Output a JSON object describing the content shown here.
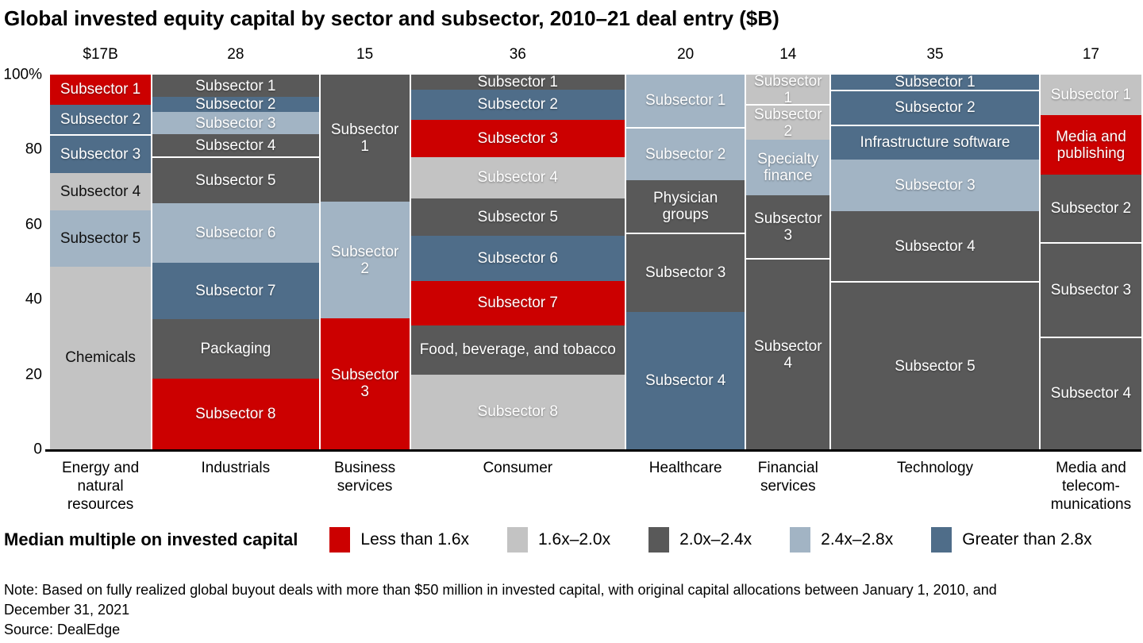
{
  "title": "Global invested equity capital by sector and subsector, 2010–21 deal entry ($B)",
  "colors": {
    "red": "#cc0000",
    "lightgray": "#c3c3c3",
    "darkgray": "#595959",
    "lightblue": "#a2b4c4",
    "darkblue": "#4f6d89"
  },
  "legend": {
    "title": "Median multiple on invested capital",
    "items": [
      {
        "label": "Less than 1.6x",
        "color": "red"
      },
      {
        "label": "1.6x–2.0x",
        "color": "lightgray"
      },
      {
        "label": "2.0x–2.4x",
        "color": "darkgray"
      },
      {
        "label": "2.4x–2.8x",
        "color": "lightblue"
      },
      {
        "label": "Greater than 2.8x",
        "color": "darkblue"
      }
    ]
  },
  "note_line1": "Note: Based on fully realized global buyout deals with more than $50 million in invested capital, with original capital allocations between January 1, 2010, and",
  "note_line2": "December 31, 2021",
  "source": "Source: DealEdge",
  "chart_data": {
    "type": "marimekko-100pct-stacked-bar",
    "title": "Global invested equity capital by sector and subsector, 2010–21 deal entry ($B)",
    "unit": "$B",
    "y_axis": {
      "ticks": [
        "100%",
        "80",
        "60",
        "40",
        "20",
        "0"
      ],
      "tick_pcts": [
        100,
        80,
        60,
        40,
        20,
        0
      ]
    },
    "color_key_meaning": {
      "red": "Less than 1.6x",
      "lightgray": "1.6x–2.0x",
      "darkgray": "2.0x–2.4x",
      "lightblue": "2.4x–2.8x",
      "darkblue": "Greater than 2.8x"
    },
    "columns": [
      {
        "sector": "Energy and natural resources",
        "total_label": "$17B",
        "value": 17,
        "segments": [
          {
            "label": "Subsector 1",
            "pct": 8,
            "color": "red"
          },
          {
            "label": "Subsector 2",
            "pct": 8,
            "color": "darkblue"
          },
          {
            "label": "Subsector 3",
            "pct": 10,
            "color": "darkblue"
          },
          {
            "label": "Subsector 4",
            "pct": 10,
            "color": "lightgray",
            "text": "dark"
          },
          {
            "label": "Subsector 5",
            "pct": 15,
            "color": "lightblue",
            "text": "dark"
          },
          {
            "label": "Chemicals",
            "pct": 49,
            "color": "lightgray",
            "text": "dark"
          }
        ]
      },
      {
        "sector": "Industrials",
        "total_label": "28",
        "value": 28,
        "segments": [
          {
            "label": "Subsector 1",
            "pct": 6,
            "color": "darkgray"
          },
          {
            "label": "Subsector 2",
            "pct": 4,
            "color": "darkblue"
          },
          {
            "label": "Subsector 3",
            "pct": 6,
            "color": "lightblue"
          },
          {
            "label": "Subsector 4",
            "pct": 6,
            "color": "darkgray"
          },
          {
            "label": "Subsector 5",
            "pct": 12,
            "color": "darkgray"
          },
          {
            "label": "Subsector 6",
            "pct": 16,
            "color": "lightblue"
          },
          {
            "label": "Subsector 7",
            "pct": 15,
            "color": "darkblue"
          },
          {
            "label": "Packaging",
            "pct": 16,
            "color": "darkgray"
          },
          {
            "label": "Subsector 8",
            "pct": 19,
            "color": "red"
          }
        ]
      },
      {
        "sector": "Business services",
        "total_label": "15",
        "value": 15,
        "segments": [
          {
            "label": "Subsector 1",
            "pct": 34,
            "color": "darkgray"
          },
          {
            "label": "Subsector 2",
            "pct": 31,
            "color": "lightblue"
          },
          {
            "label": "Subsector 3",
            "pct": 35,
            "color": "red"
          }
        ]
      },
      {
        "sector": "Consumer",
        "total_label": "36",
        "value": 36,
        "segments": [
          {
            "label": "Subsector 1",
            "pct": 4,
            "color": "darkgray"
          },
          {
            "label": "Subsector 2",
            "pct": 8,
            "color": "darkblue"
          },
          {
            "label": "Subsector 3",
            "pct": 10,
            "color": "red"
          },
          {
            "label": "Subsector 4",
            "pct": 11,
            "color": "lightgray"
          },
          {
            "label": "Subsector 5",
            "pct": 10,
            "color": "darkgray"
          },
          {
            "label": "Subsector 6",
            "pct": 12,
            "color": "darkblue"
          },
          {
            "label": "Subsector 7",
            "pct": 12,
            "color": "red"
          },
          {
            "label": "Food, beverage, and tobacco",
            "pct": 13,
            "color": "darkgray"
          },
          {
            "label": "Subsector 8",
            "pct": 20,
            "color": "lightgray"
          }
        ]
      },
      {
        "sector": "Healthcare",
        "total_label": "20",
        "value": 20,
        "segments": [
          {
            "label": "Subsector 1",
            "pct": 14,
            "color": "lightblue"
          },
          {
            "label": "Subsector 2",
            "pct": 14,
            "color": "lightblue"
          },
          {
            "label": "Physician groups",
            "pct": 14,
            "color": "darkgray"
          },
          {
            "label": "Subsector 3",
            "pct": 21,
            "color": "darkgray"
          },
          {
            "label": "Subsector 4",
            "pct": 37,
            "color": "darkblue"
          }
        ]
      },
      {
        "sector": "Financial services",
        "total_label": "14",
        "value": 14,
        "segments": [
          {
            "label": "Subsector 1",
            "pct": 8,
            "color": "lightgray"
          },
          {
            "label": "Subsector 2",
            "pct": 9,
            "color": "lightgray"
          },
          {
            "label": "Specialty finance",
            "pct": 15,
            "color": "lightblue"
          },
          {
            "label": "Subsector 3",
            "pct": 17,
            "color": "darkgray"
          },
          {
            "label": "Subsector 4",
            "pct": 51,
            "color": "darkgray"
          }
        ]
      },
      {
        "sector": "Technology",
        "total_label": "35",
        "value": 35,
        "segments": [
          {
            "label": "Subsector 1",
            "pct": 4,
            "color": "darkblue"
          },
          {
            "label": "Subsector 2",
            "pct": 9,
            "color": "darkblue"
          },
          {
            "label": "Infrastructure software",
            "pct": 9,
            "color": "darkblue"
          },
          {
            "label": "Subsector 3",
            "pct": 14,
            "color": "lightblue"
          },
          {
            "label": "Subsector 4",
            "pct": 19,
            "color": "darkgray"
          },
          {
            "label": "Subsector 5",
            "pct": 45,
            "color": "darkgray"
          }
        ]
      },
      {
        "sector": "Media and telecom-munications",
        "total_label": "17",
        "value": 17,
        "segments": [
          {
            "label": "Subsector 1",
            "pct": 11,
            "color": "lightgray"
          },
          {
            "label": "Media and publishing",
            "pct": 16,
            "color": "red"
          },
          {
            "label": "Subsector 2",
            "pct": 18,
            "color": "darkgray"
          },
          {
            "label": "Subsector 3",
            "pct": 25,
            "color": "darkgray"
          },
          {
            "label": "Subsector 4",
            "pct": 30,
            "color": "darkgray"
          }
        ]
      }
    ]
  }
}
